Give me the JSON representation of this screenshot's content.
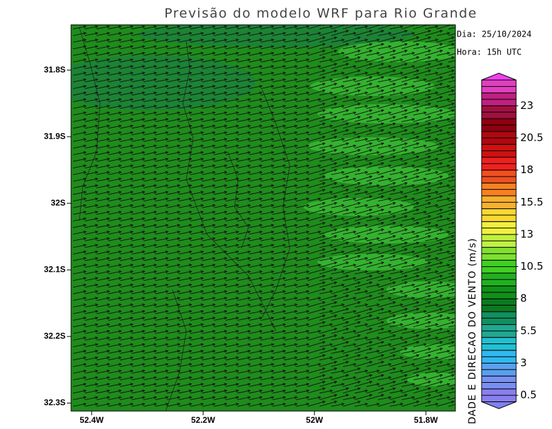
{
  "header": {
    "title": "Previsão do modelo WRF para Rio Grande",
    "date": "Dia: 25/10/2024",
    "hour": "Hora: 15h UTC"
  },
  "map": {
    "ylim": [
      -31.732,
      -32.312
    ],
    "xlim": [
      -52.437,
      -51.747
    ],
    "lat_ticks": [
      {
        "value": -31.8,
        "label": "31.8S"
      },
      {
        "value": -31.9,
        "label": "31.9S"
      },
      {
        "value": -32,
        "label": "32S"
      },
      {
        "value": -32.1,
        "label": "32.1S"
      },
      {
        "value": -32.2,
        "label": "32.2S"
      },
      {
        "value": -32.3,
        "label": "32.3S"
      }
    ],
    "lon_ticks": [
      {
        "value": -52.4,
        "label": "52.4W"
      },
      {
        "value": -52.2,
        "label": "52.2W"
      },
      {
        "value": -52,
        "label": "52W"
      },
      {
        "value": -51.8,
        "label": "51.8W"
      }
    ]
  },
  "colorbar": {
    "title": "DADE E DIRECAO DO VENTO (m/s)",
    "lim": [
      0,
      25
    ],
    "ticks": [
      0.5,
      3,
      5.5,
      8,
      10.5,
      13,
      15.5,
      18,
      20.5,
      23
    ],
    "palette": [
      "#8a7ff0",
      "#7890f0",
      "#5aa0f0",
      "#30b8f0",
      "#20c0d0",
      "#20a890",
      "#109060",
      "#0a7a20",
      "#10901a",
      "#20b020",
      "#40d020",
      "#80e030",
      "#c0f040",
      "#f0f040",
      "#f8d830",
      "#f8b030",
      "#f88020",
      "#f05020",
      "#f02020",
      "#d01010",
      "#b00810",
      "#900010",
      "#a01040",
      "#c02080",
      "#e040c0"
    ],
    "low_color": "#8080f0",
    "high_color": "#f040f0"
  }
}
